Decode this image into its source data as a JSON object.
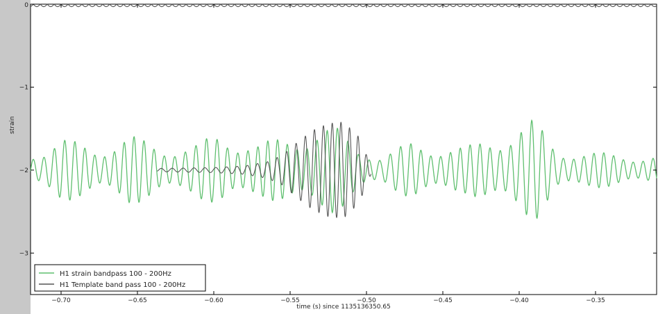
{
  "chart_data": {
    "type": "line",
    "title": "",
    "xlabel": "time (s) since 1135136350.65",
    "ylabel": "strain",
    "xlim": [
      -0.72,
      -0.31
    ],
    "ylim": [
      -3.5,
      0
    ],
    "x_ticks": [
      -0.7,
      -0.65,
      -0.6,
      -0.55,
      -0.5,
      -0.45,
      -0.4,
      -0.35
    ],
    "x_tick_labels": [
      "−0.70",
      "−0.65",
      "−0.60",
      "−0.55",
      "−0.50",
      "−0.45",
      "−0.40",
      "−0.35"
    ],
    "y_ticks": [
      0,
      -1,
      -2,
      -3
    ],
    "y_tick_labels": [
      "0",
      "−1",
      "−2",
      "−3"
    ],
    "grid": false,
    "legend_position": "bottom-left",
    "series": [
      {
        "name": "H1 strain bandpass 100 - 200Hz",
        "color": "#5fbf6f",
        "baseline": -2.0,
        "x_range": [
          -0.72,
          -0.31
        ],
        "sample_points": {
          "x": [
            -0.715,
            -0.7,
            -0.675,
            -0.655,
            -0.635,
            -0.613,
            -0.595,
            -0.57,
            -0.553,
            -0.535,
            -0.52,
            -0.505,
            -0.49,
            -0.47,
            -0.455,
            -0.435,
            -0.415,
            -0.39,
            -0.375,
            -0.355,
            -0.335,
            -0.312
          ],
          "envelope": [
            0.25,
            0.38,
            0.3,
            0.42,
            0.32,
            0.3,
            0.48,
            0.32,
            0.42,
            0.52,
            0.52,
            0.3,
            0.18,
            0.35,
            0.32,
            0.28,
            0.45,
            0.62,
            0.28,
            0.22,
            0.2,
            0.18
          ]
        }
      },
      {
        "name": "H1 Template band pass 100 - 200Hz",
        "color": "#555555",
        "baseline": -2.0,
        "x_range": [
          -0.637,
          -0.497
        ],
        "sample_points": {
          "x": [
            -0.637,
            -0.6,
            -0.58,
            -0.565,
            -0.555,
            -0.545,
            -0.535,
            -0.525,
            -0.515,
            -0.505,
            -0.497
          ],
          "envelope": [
            0.02,
            0.03,
            0.05,
            0.1,
            0.18,
            0.34,
            0.48,
            0.56,
            0.58,
            0.4,
            0.05
          ]
        }
      },
      {
        "name": "",
        "color": "#555555",
        "baseline": 0.0,
        "x_range": [
          -0.72,
          -0.31
        ],
        "sample_points": {
          "x": [
            -0.72,
            -0.31
          ],
          "envelope": [
            0.03,
            0.03
          ]
        }
      }
    ]
  }
}
